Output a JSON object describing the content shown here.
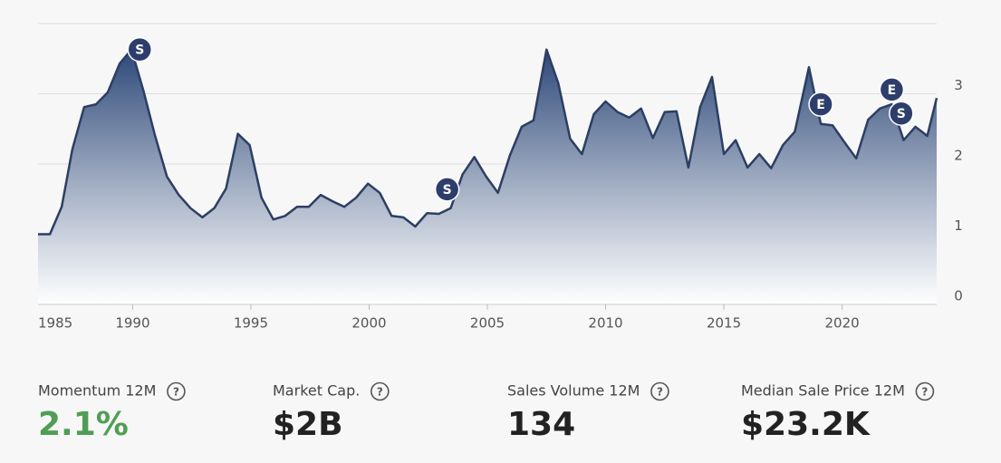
{
  "chart_data": {
    "type": "area",
    "x": [
      1986.0,
      1986.5,
      1987.0,
      1987.45,
      1987.95,
      1988.45,
      1988.95,
      1989.45,
      1989.95,
      1990.45,
      1990.95,
      1991.45,
      1991.95,
      1992.45,
      1992.95,
      1993.45,
      1993.95,
      1994.45,
      1994.95,
      1995.45,
      1995.95,
      1996.45,
      1996.95,
      1997.45,
      1997.95,
      1998.45,
      1998.95,
      1999.45,
      1999.95,
      2000.45,
      2000.95,
      2001.45,
      2001.95,
      2002.45,
      2002.95,
      2003.45,
      2003.95,
      2004.45,
      2004.95,
      2005.45,
      2005.95,
      2006.45,
      2006.95,
      2007.5,
      2008.0,
      2008.5,
      2009.0,
      2009.5,
      2010.0,
      2010.5,
      2011.0,
      2011.5,
      2012.0,
      2012.5,
      2013.0,
      2013.5,
      2014.0,
      2014.5,
      2015.0,
      2015.5,
      2016.0,
      2016.5,
      2017.0,
      2017.5,
      2018.0,
      2018.6,
      2019.1,
      2019.6,
      2020.1,
      2020.6,
      2021.1,
      2021.6,
      2022.1,
      2022.6,
      2023.1,
      2023.6,
      2024.0
    ],
    "values": [
      1.0,
      1.0,
      1.39,
      2.21,
      2.81,
      2.85,
      3.02,
      3.43,
      3.63,
      3.05,
      2.4,
      1.82,
      1.56,
      1.37,
      1.24,
      1.37,
      1.65,
      2.43,
      2.27,
      1.52,
      1.21,
      1.26,
      1.39,
      1.39,
      1.56,
      1.47,
      1.39,
      1.52,
      1.72,
      1.59,
      1.26,
      1.24,
      1.11,
      1.3,
      1.29,
      1.37,
      1.85,
      2.1,
      1.82,
      1.59,
      2.12,
      2.53,
      2.62,
      3.63,
      3.15,
      2.36,
      2.14,
      2.71,
      2.89,
      2.74,
      2.66,
      2.79,
      2.37,
      2.74,
      2.75,
      1.95,
      2.81,
      3.24,
      2.14,
      2.34,
      1.95,
      2.14,
      1.94,
      2.27,
      2.46,
      3.38,
      2.57,
      2.55,
      2.31,
      2.08,
      2.63,
      2.79,
      2.85,
      2.34,
      2.53,
      2.4,
      2.94
    ],
    "color": "#2c3e63",
    "xlim": [
      1986,
      2024
    ],
    "xticks": [
      1985,
      1990,
      1995,
      2000,
      2005,
      2010,
      2015,
      2020
    ],
    "ylim": [
      0,
      4
    ],
    "yticks": [
      0,
      1,
      2,
      3
    ],
    "grid": true,
    "markers": [
      {
        "label": "S",
        "x": 1990.3,
        "y": 3.63
      },
      {
        "label": "S",
        "x": 2003.3,
        "y": 1.64
      },
      {
        "label": "E",
        "x": 2019.1,
        "y": 2.85
      },
      {
        "label": "E",
        "x": 2022.1,
        "y": 3.06
      },
      {
        "label": "S",
        "x": 2022.5,
        "y": 2.72
      }
    ]
  },
  "stats": [
    {
      "label": "Momentum 12M",
      "value": "2.1%",
      "color": "#4f9e55"
    },
    {
      "label": "Market Cap.",
      "value": "$2B",
      "color": "#222222"
    },
    {
      "label": "Sales Volume 12M",
      "value": "134",
      "color": "#222222"
    },
    {
      "label": "Median Sale Price 12M",
      "value": "$23.2K",
      "color": "#222222"
    }
  ]
}
